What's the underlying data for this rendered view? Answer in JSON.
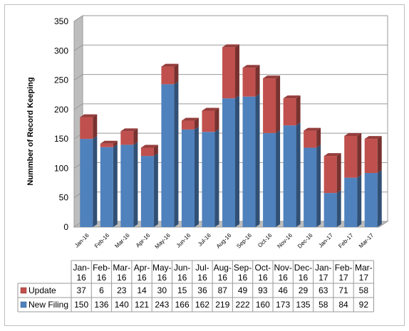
{
  "chart_data": {
    "type": "bar",
    "stacked": true,
    "three_d": true,
    "categories": [
      "Jan-16",
      "Feb-16",
      "Mar-16",
      "Apr-16",
      "May-16",
      "Jun-16",
      "Jul-16",
      "Aug-16",
      "Sep-16",
      "Oct-16",
      "Nov-16",
      "Dec-16",
      "Jan-17",
      "Feb-17",
      "Mar-17"
    ],
    "table_headers": [
      [
        "Jan-",
        "16"
      ],
      [
        "Feb-",
        "16"
      ],
      [
        "Mar-",
        "16"
      ],
      [
        "Apr-",
        "16"
      ],
      [
        "May-",
        "16"
      ],
      [
        "Jun-",
        "16"
      ],
      [
        "Jul-",
        "16"
      ],
      [
        "Aug-",
        "16"
      ],
      [
        "Sep-",
        "16"
      ],
      [
        "Oct-",
        "16"
      ],
      [
        "Nov-",
        "16"
      ],
      [
        "Dec-",
        "16"
      ],
      [
        "Jan-",
        "17"
      ],
      [
        "Feb-",
        "17"
      ],
      [
        "Mar-",
        "17"
      ]
    ],
    "series": [
      {
        "name": "New Filing",
        "color": "#4f81bd",
        "values": [
          150,
          136,
          140,
          121,
          243,
          166,
          162,
          219,
          222,
          160,
          173,
          135,
          58,
          84,
          92
        ]
      },
      {
        "name": "Update",
        "color": "#c0504d",
        "values": [
          37,
          6,
          23,
          14,
          30,
          15,
          36,
          87,
          49,
          93,
          46,
          29,
          63,
          71,
          58
        ]
      }
    ],
    "title": "",
    "xlabel": "",
    "ylabel": "Nummber of Record Keeping",
    "ylim": [
      0,
      350
    ],
    "yticks": [
      "0",
      "50",
      "100",
      "150",
      "200",
      "250",
      "300",
      "350"
    ],
    "grid": true,
    "legend": "data-table"
  }
}
